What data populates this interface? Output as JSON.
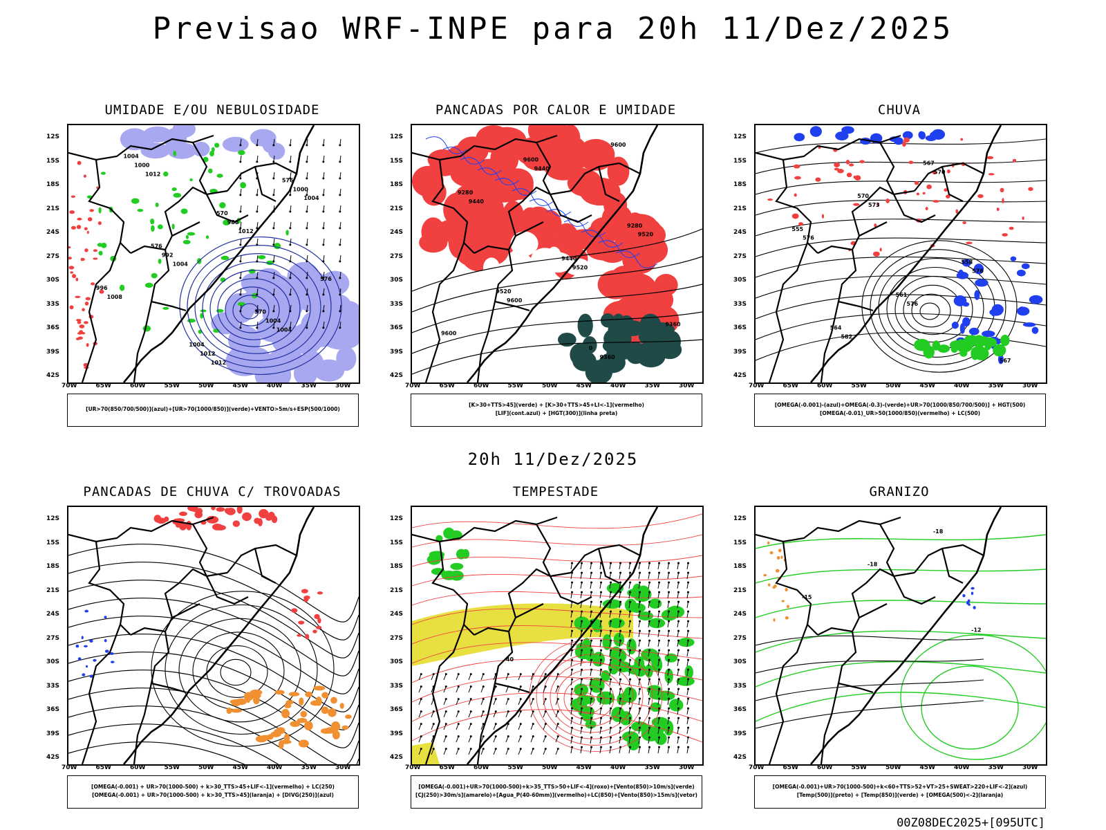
{
  "header": {
    "title": "Previsao WRF-INPE  para 20h 11/Dez/2025"
  },
  "mid_title": "20h 11/Dez/2025",
  "footer": "00Z08DEC2025+[095UTC]",
  "axes": {
    "lat_labels": [
      "12S",
      "15S",
      "18S",
      "21S",
      "24S",
      "27S",
      "30S",
      "33S",
      "36S",
      "39S",
      "42S"
    ],
    "lon_labels": [
      "70W",
      "65W",
      "60W",
      "55W",
      "50W",
      "45W",
      "40W",
      "35W",
      "30W"
    ]
  },
  "colors": {
    "red": "#f04040",
    "blue": "#2040f0",
    "green": "#22cc22",
    "orange": "#f09030",
    "yellow": "#e8e040",
    "darkteal": "#1f4a48",
    "lavender": "#a8a8f0",
    "purple": "#c020c0"
  },
  "panels": [
    {
      "id": "umidade",
      "title": "UMIDADE E/OU NEBULOSIDADE",
      "legend": [
        "[UR>70(850/700/500)](azul)+[UR>70(1000/850)](verde)+VENTO>5m/s+ESP(500/1000)"
      ],
      "labels": [
        "1012",
        "1012",
        "1004",
        "1008",
        "1004",
        "1012",
        "1004",
        "1000",
        "1012",
        "1004",
        "996",
        "992",
        "988",
        "1000",
        "1004",
        "1004",
        "570",
        "576",
        "576",
        "570",
        "576"
      ]
    },
    {
      "id": "pancadas-calor",
      "title": "PANCADAS POR CALOR E UMIDADE",
      "legend": [
        "[K>30+TTS>45](verde)  +  [K>30+TTS>45+LI<-1](vermelho)",
        "[LIF](cont.azul)  +  [HGT(300)](linha preta)"
      ],
      "labels": [
        "9600",
        "9600",
        "9600",
        "9520",
        "9520",
        "9440",
        "9440",
        "9360",
        "9360",
        "9520",
        "9440",
        "9280",
        "9280",
        "9600",
        "0"
      ]
    },
    {
      "id": "chuva",
      "title": "CHUVA",
      "legend": [
        "[OMEGA(-0.001)-(azul)+OMEGA(-0.3)-(verde)+UR>70(1000/850/700/500)]  +  HGT(500)",
        "[OMEGA(-0.01)_UR>50(1000/850)(vermelho) + LC(500)"
      ],
      "labels": [
        "582",
        "576",
        "576",
        "576",
        "573",
        "570",
        "567",
        "564",
        "561",
        "558",
        "555",
        "570",
        "567"
      ]
    },
    {
      "id": "trovoadas",
      "title": "PANCADAS DE CHUVA C/ TROVOADAS",
      "legend": [
        "[OMEGA(-0.001) + UR>70(1000-500) + k>30_TTS>45+LIF<-1](vermelho) + LC(250)",
        "[OMEGA(-0.001) + UR>70(1000-500) + k>30_TTS>45](laranja) + [DIVG(250)](azul)"
      ],
      "labels": []
    },
    {
      "id": "tempestade",
      "title": "TEMPESTADE",
      "legend": [
        "[OMEGA(-0.001)+UR>70(1000-500)+k>35_TTS>50+LIF<-4](roxo)+[Vento(850)>10m/s](verde)",
        "[CJ(250)>30m/s](amarelo)+[Agua_P(40-60mm)](vermelho)+LC(850)+[Vento(850)>15m/s](vetor)"
      ],
      "labels": [
        "40"
      ]
    },
    {
      "id": "granizo",
      "title": "GRANIZO",
      "legend": [
        "[OMEGA(-0.001)+UR>70(1000-500)+k<60+TTS>52+VT>25+SWEAT>220+LIF<-2](azul)",
        "[Temp(500)](preto)  +  [Temp(850)](verde)  +  [OMEGA(500)<-2](laranja)"
      ],
      "labels": [
        "-12",
        "-15",
        "-18",
        "-18"
      ]
    }
  ]
}
